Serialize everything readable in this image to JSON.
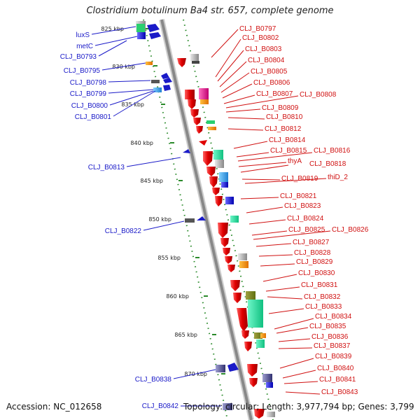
{
  "title": "Clostridium botulinum Ba4 str. 657, complete genome",
  "footer": {
    "accession": "Accession: NC_012658",
    "topology": "Topology: circular; Length: 3,977,794 bp; Genes: 3,799"
  },
  "colors": {
    "forward": "#1a1ac8",
    "reverse": "#d01010",
    "backbone": "#888888",
    "ticks": "#2a8a2a"
  },
  "scale_labels": [
    "825 kbp",
    "830 kbp",
    "835 kbp",
    "840 kbp",
    "845 kbp",
    "850 kbp",
    "855 kbp",
    "860 kbp",
    "865 kbp",
    "870 kbp"
  ],
  "left_genes": [
    "luxS",
    "metC",
    "CLJ_B0793",
    "CLJ_B0795",
    "CLJ_B0798",
    "CLJ_B0799",
    "CLJ_B0800",
    "CLJ_B0801",
    "CLJ_B0813",
    "CLJ_B0822",
    "CLJ_B0838",
    "CLJ_B0842"
  ],
  "right_genes": [
    "CLJ_B0797",
    "CLJ_B0802",
    "CLJ_B0803",
    "CLJ_B0804",
    "CLJ_B0805",
    "CLJ_B0806",
    "CLJ_B0807",
    "CLJ_B0808",
    "CLJ_B0809",
    "CLJ_B0810",
    "CLJ_B0812",
    "CLJ_B0814",
    "CLJ_B0815",
    "CLJ_B0816",
    "thyA",
    "CLJ_B0818",
    "CLJ_B0819",
    "thiD_2",
    "CLJ_B0821",
    "CLJ_B0823",
    "CLJ_B0824",
    "CLJ_B0825",
    "CLJ_B0826",
    "CLJ_B0827",
    "CLJ_B0828",
    "CLJ_B0829",
    "CLJ_B0830",
    "CLJ_B0831",
    "CLJ_B0832",
    "CLJ_B0833",
    "CLJ_B0834",
    "CLJ_B0835",
    "CLJ_B0836",
    "CLJ_B0837",
    "CLJ_B0839",
    "CLJ_B0840",
    "CLJ_B0841",
    "CLJ_B0843"
  ]
}
